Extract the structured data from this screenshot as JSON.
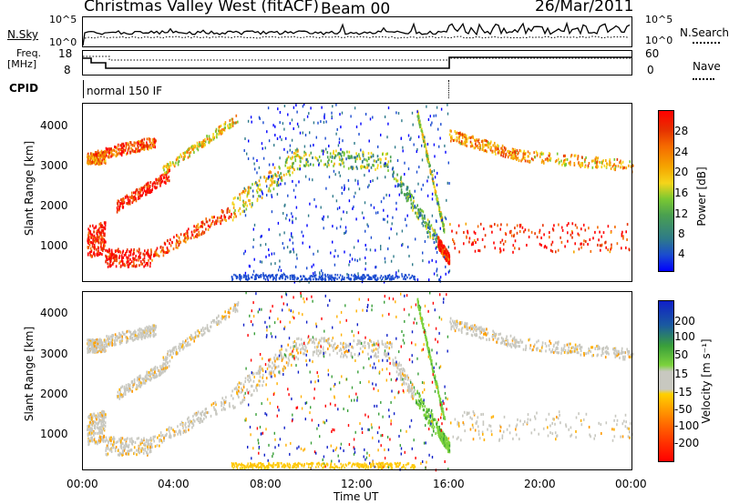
{
  "header": {
    "title": "Christmas Valley West (fitACF)",
    "beam": "Beam 00",
    "date": "26/Mar/2011"
  },
  "top_panel": {
    "left_label": "N.Sky",
    "left_ticks": [
      "10^5",
      "10^0"
    ],
    "right_ticks": [
      "10^5",
      "10^0"
    ],
    "right_label": "N.Search"
  },
  "freq_panel": {
    "left_label_line1": "Freq.",
    "left_label_line2": "[MHz]",
    "left_ticks": [
      "18",
      "8"
    ],
    "right_ticks": [
      "60",
      "0"
    ],
    "right_label": "Nave"
  },
  "cpid_panel": {
    "label": "CPID",
    "text": "normal 150 IF"
  },
  "colors": {
    "power_scale": [
      "#0000ff",
      "#1a4bd0",
      "#2e7a8a",
      "#4aa050",
      "#7ac832",
      "#f5d51a",
      "#f5a500",
      "#f56a00",
      "#e63200",
      "#ff0000"
    ],
    "velocity_scale": [
      "#ff0000",
      "#ff5a00",
      "#ff9a00",
      "#ffc800",
      "#c8c8c0",
      "#c8c8c0",
      "#7cd23c",
      "#3aa03a",
      "#1a5aa0",
      "#1020c8"
    ]
  },
  "chart_data": [
    {
      "type": "heatmap",
      "name": "power",
      "ylabel": "Slant Range [km]",
      "y_ticks": [
        "1000",
        "2000",
        "3000",
        "4000"
      ],
      "ylim": [
        500,
        4500
      ],
      "colorbar_label": "Power [dB]",
      "colorbar_ticks": [
        "28",
        "24",
        "20",
        "16",
        "12",
        "8",
        "4"
      ],
      "colorbar_range": [
        0,
        30
      ],
      "x_ticks": [
        "00:00",
        "04:00",
        "08:00",
        "12:00",
        "16:00",
        "20:00",
        "00:00"
      ],
      "xlim_hours": [
        0,
        24
      ]
    },
    {
      "type": "heatmap",
      "name": "velocity",
      "ylabel": "Slant Range [km]",
      "y_ticks": [
        "1000",
        "2000",
        "3000",
        "4000"
      ],
      "ylim": [
        500,
        4500
      ],
      "colorbar_label": "Velocity [m s⁻¹]",
      "colorbar_ticks": [
        "200",
        "100",
        "50",
        "15",
        "-15",
        "-50",
        "-100",
        "-200"
      ],
      "x_ticks": [
        "00:00",
        "04:00",
        "08:00",
        "12:00",
        "16:00",
        "20:00",
        "00:00"
      ],
      "xlabel": "Time UT",
      "xlim_hours": [
        0,
        24
      ]
    }
  ]
}
